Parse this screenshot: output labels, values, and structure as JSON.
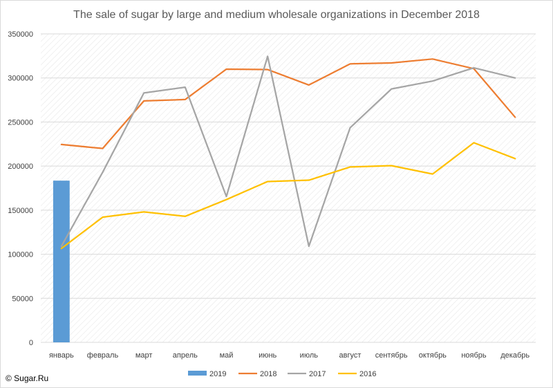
{
  "watermark": "© Sugar.Ru",
  "chart_data": {
    "type": "line",
    "title": "The sale of sugar by large and medium wholesale organizations in December 2018",
    "xlabel": "",
    "ylabel": "",
    "ylim": [
      0,
      350000
    ],
    "yticks": [
      0,
      50000,
      100000,
      150000,
      200000,
      250000,
      300000,
      350000
    ],
    "grid": true,
    "legend_position": "bottom",
    "categories": [
      "январь",
      "февраль",
      "март",
      "апрель",
      "май",
      "июнь",
      "июль",
      "август",
      "сентябрь",
      "октябрь",
      "ноябрь",
      "декабрь"
    ],
    "series": [
      {
        "name": "2019",
        "type": "bar",
        "color": "#5b9bd5",
        "values": [
          183500,
          null,
          null,
          null,
          null,
          null,
          null,
          null,
          null,
          null,
          null,
          null
        ]
      },
      {
        "name": "2018",
        "type": "line",
        "color": "#ed7d31",
        "values": [
          224500,
          220000,
          274000,
          275500,
          310000,
          309500,
          292000,
          316000,
          317000,
          321500,
          310500,
          255500
        ]
      },
      {
        "name": "2017",
        "type": "line",
        "color": "#a5a5a5",
        "values": [
          109000,
          193000,
          283000,
          289500,
          165500,
          324500,
          109000,
          243500,
          287500,
          296500,
          311500,
          300000
        ]
      },
      {
        "name": "2016",
        "type": "line",
        "color": "#ffc000",
        "values": [
          106500,
          142000,
          148000,
          143000,
          162000,
          182500,
          184000,
          199000,
          200500,
          191000,
          226500,
          208500
        ]
      }
    ]
  }
}
